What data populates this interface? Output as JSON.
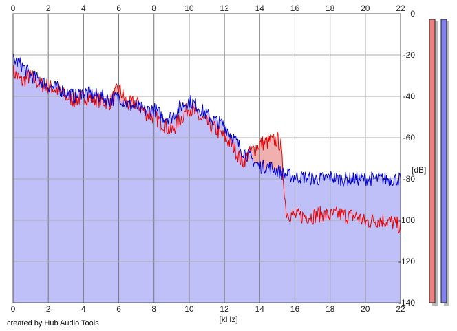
{
  "chart_data": {
    "type": "area",
    "xlabel": "[kHz]",
    "ylabel": "[dB]",
    "xlim": [
      0,
      22
    ],
    "ylim": [
      -140,
      0
    ],
    "x_ticks": [
      0,
      2,
      4,
      6,
      8,
      10,
      12,
      14,
      16,
      18,
      20,
      22
    ],
    "y_ticks": [
      0,
      -20,
      -40,
      -60,
      -80,
      -100,
      -120,
      -140
    ],
    "grid": true,
    "series": [
      {
        "color": "#e80000",
        "fill": "#f0b0b0",
        "x": [
          0,
          0.5,
          1,
          1.5,
          2,
          2.5,
          3,
          3.5,
          4,
          4.5,
          5,
          5.5,
          6,
          6.5,
          7,
          7.5,
          8,
          8.5,
          9,
          9.5,
          10,
          10.5,
          11,
          11.5,
          12,
          12.5,
          13,
          13.5,
          14,
          14.5,
          15,
          15.2,
          15.5,
          16,
          16.5,
          17,
          17.5,
          18,
          18.5,
          19,
          19.5,
          20,
          20.5,
          21,
          21.5,
          22
        ],
        "values": [
          -28,
          -33,
          -30,
          -34,
          -35,
          -37,
          -40,
          -42,
          -40,
          -41,
          -42,
          -43,
          -36,
          -44,
          -43,
          -48,
          -50,
          -53,
          -57,
          -51,
          -45,
          -50,
          -53,
          -56,
          -60,
          -64,
          -72,
          -67,
          -63,
          -62,
          -61,
          -64,
          -96,
          -98,
          -98,
          -98,
          -97,
          -98,
          -97,
          -98,
          -98,
          -101,
          -100,
          -100,
          -101,
          -103
        ]
      },
      {
        "color": "#0000cc",
        "fill": "#c0c0f8",
        "x": [
          0,
          0.5,
          1,
          1.5,
          2,
          2.5,
          3,
          3.5,
          4,
          4.5,
          5,
          5.5,
          6,
          6.5,
          7,
          7.5,
          8,
          8.5,
          9,
          9.5,
          10,
          10.5,
          11,
          11.5,
          12,
          12.5,
          13,
          13.5,
          14,
          14.5,
          15,
          15.5,
          16,
          16.5,
          17,
          17.5,
          18,
          18.5,
          19,
          19.5,
          20,
          20.5,
          21,
          21.5,
          22
        ],
        "values": [
          -22,
          -25,
          -30,
          -32,
          -35,
          -36,
          -38,
          -40,
          -38,
          -39,
          -40,
          -42,
          -40,
          -44,
          -45,
          -47,
          -46,
          -50,
          -50,
          -45,
          -42,
          -45,
          -49,
          -52,
          -54,
          -60,
          -66,
          -70,
          -74,
          -74,
          -76,
          -78,
          -79,
          -79,
          -80,
          -80,
          -79,
          -80,
          -80,
          -80,
          -80,
          -80,
          -80,
          -80,
          -80
        ]
      }
    ]
  },
  "meters": [
    {
      "name": "left-level-meter",
      "color": "#f08080"
    },
    {
      "name": "right-level-meter",
      "color": "#8080f0"
    }
  ],
  "credit": "created by Hub Audio Tools"
}
